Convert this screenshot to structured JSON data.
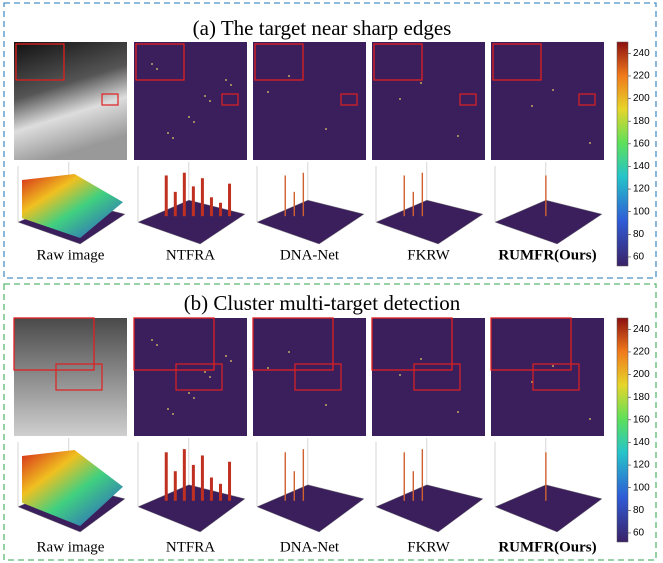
{
  "sections": [
    {
      "title": "(a) The target near sharp edges",
      "labels": [
        "Raw image",
        "NTFRA",
        "DNA-Net",
        "FKRW",
        "RUMFR(Ours)"
      ],
      "colorbar": {
        "lim": [
          52,
          250
        ],
        "ticks": [
          60,
          80,
          100,
          120,
          140,
          160,
          180,
          200,
          220,
          240
        ]
      }
    },
    {
      "title": "(b) Cluster multi-target detection",
      "labels": [
        "Raw image",
        "NTFRA",
        "DNA-Net",
        "FKRW",
        "RUMFR(Ours)"
      ],
      "colorbar": {
        "lim": [
          52,
          250
        ],
        "ticks": [
          60,
          80,
          100,
          120,
          140,
          160,
          180,
          200,
          220,
          240
        ]
      }
    }
  ]
}
